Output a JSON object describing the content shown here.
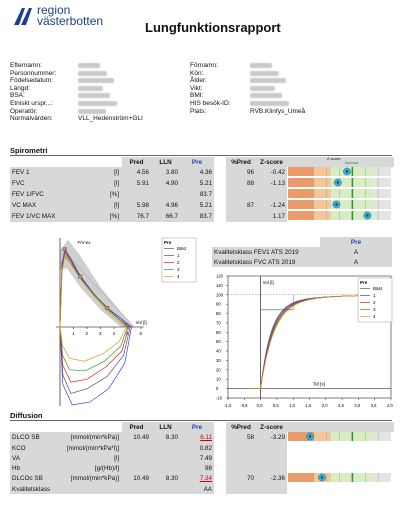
{
  "logo": {
    "line1": "region",
    "line2": "västerbotten"
  },
  "title": "Lungfunktionsrapport",
  "patient_left": [
    {
      "label": "Efternamn:",
      "value": ""
    },
    {
      "label": "Personnummer:",
      "value": ""
    },
    {
      "label": "Födelsedatum:",
      "value": ""
    },
    {
      "label": "Längd:",
      "value": ""
    },
    {
      "label": "BSA:",
      "value": ""
    },
    {
      "label": "Etniskt urspr...:",
      "value": ""
    },
    {
      "label": "Operatör:",
      "value": ""
    },
    {
      "label": "Normalvärden:",
      "value": "VLL_Hedenström+GLI"
    }
  ],
  "patient_right": [
    {
      "label": "Förnamn:",
      "value": ""
    },
    {
      "label": "Kön:",
      "value": ""
    },
    {
      "label": "Ålder:",
      "value": ""
    },
    {
      "label": "Vikt:",
      "value": ""
    },
    {
      "label": "BMI:",
      "value": ""
    },
    {
      "label": "HIS besök-ID:",
      "value": ""
    },
    {
      "label": "Plats:",
      "value": "RVB.Klinfys_Umeå"
    }
  ],
  "spirometri": {
    "title": "Spirometri",
    "headers": {
      "pred": "Pred",
      "lln": "LLN",
      "pre": "Pre",
      "pctpred": "%Pred",
      "z": "Z-score"
    },
    "zscale_label": "Z-score",
    "zscale_normal": "Normal",
    "rows": [
      {
        "name": "FEV 1",
        "unit": "[l]",
        "pred": "4.56",
        "lln": "3.80",
        "pre": "4.36",
        "pctpred": "96",
        "z": "-0.42",
        "zval": -0.42
      },
      {
        "name": "FVC",
        "unit": "[l]",
        "pred": "5.91",
        "lln": "4.90",
        "pre": "5.21",
        "pctpred": "88",
        "z": "-1.13",
        "zval": -1.13
      },
      {
        "name": "FEV 1/FVC",
        "unit": "[%]",
        "pred": "",
        "lln": "",
        "pre": "83.7",
        "pctpred": "",
        "z": "",
        "zval": null
      },
      {
        "name": "VC MAX",
        "unit": "[l]",
        "pred": "5.98",
        "lln": "4.96",
        "pre": "5.21",
        "pctpred": "87",
        "z": "-1.24",
        "zval": -1.24
      },
      {
        "name": "FEV 1/VC MAX",
        "unit": "[%]",
        "pred": "76.7",
        "lln": "66.7",
        "pre": "83.7",
        "pctpred": "",
        "z": "1.17",
        "zval": 1.17
      }
    ]
  },
  "quality": {
    "header": "Pre",
    "rows": [
      {
        "label": "Kvalitetsklass FEV1 ATS 2019",
        "value": "A"
      },
      {
        "label": "Kvalitetsklass FVC ATS 2019",
        "value": "A"
      }
    ]
  },
  "chart_data": [
    {
      "type": "line",
      "title": "F/V-ex",
      "xlabel": "Vol [l]",
      "ylabel": "",
      "xlim": [
        0,
        6
      ],
      "legend": {
        "title": "Pre",
        "entries": [
          "Bäst",
          "1",
          "2",
          "3",
          "4"
        ],
        "placement": "top-right"
      },
      "x_ticks": [
        "1",
        "2",
        "3",
        "4",
        "5",
        "6"
      ]
    },
    {
      "type": "line",
      "title": "",
      "ylabel": "Vol [l]",
      "xlabel": "Tid [s]",
      "xlim": [
        -1,
        4
      ],
      "ylim": [
        -10,
        120
      ],
      "x_ticks": [
        "-1,0",
        "-0,5",
        "0,0",
        "0,5",
        "1,0",
        "1,5",
        "2,0",
        "2,5",
        "3,0",
        "3,5",
        "4,0"
      ],
      "y_ticks": [
        "-10",
        "0",
        "10",
        "20",
        "30",
        "40",
        "50",
        "60",
        "70",
        "80",
        "90",
        "100",
        "110",
        "120"
      ],
      "legend": {
        "title": "Pre",
        "entries": [
          "Bäst",
          "1",
          "2",
          "3",
          "4"
        ],
        "placement": "top-right"
      }
    }
  ],
  "diffusion": {
    "title": "Diffusion",
    "headers": {
      "pred": "Pred",
      "lln": "LLN",
      "pre": "Pre",
      "pctpred": "%Pred",
      "z": "Z-score"
    },
    "rows": [
      {
        "name": "DLCO SB",
        "unit": "[mmol/(min*kPa)]",
        "pred": "10.49",
        "lln": "8.30",
        "pre": "6.11",
        "pre_red": true,
        "pctpred": "58",
        "z": "-3.29",
        "zval": -3.29
      },
      {
        "name": "KCO",
        "unit": "[mmol/(min*kPa*l)]",
        "pred": "",
        "lln": "",
        "pre": "0.82",
        "pctpred": "",
        "z": "",
        "zval": null
      },
      {
        "name": "VA",
        "unit": "[l]",
        "pred": "",
        "lln": "",
        "pre": "7.49",
        "pctpred": "",
        "z": "",
        "zval": null
      },
      {
        "name": "Hb",
        "unit": "[g/(Hb)/l]",
        "pred": "",
        "lln": "",
        "pre": "98",
        "pctpred": "",
        "z": "",
        "zval": null
      },
      {
        "name": "DLCOc SB",
        "unit": "[mmol/(min*kPa)]",
        "pred": "10.49",
        "lln": "8.30",
        "pre": "7.34",
        "pre_red": true,
        "pctpred": "70",
        "z": "-2.36",
        "zval": -2.36
      },
      {
        "name": "Kvalitetsklass",
        "unit": "",
        "pred": "",
        "lln": "",
        "pre": "AA",
        "pctpred": "",
        "z": "",
        "zval": null
      }
    ]
  },
  "colors": {
    "accent": "#1f3fbf",
    "red": "#cc0000",
    "logo": "#1c3f8f"
  }
}
